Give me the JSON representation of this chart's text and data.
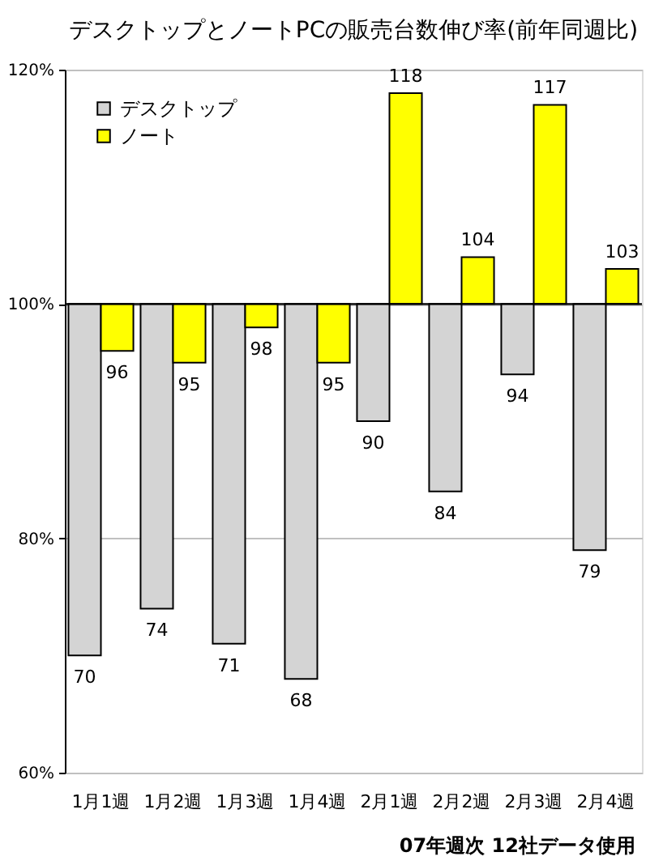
{
  "chart_data": {
    "type": "bar",
    "title": "デスクトップとノートPCの販売台数伸び率(前年同週比)",
    "categories": [
      "1月1週",
      "1月2週",
      "1月3週",
      "1月4週",
      "2月1週",
      "2月2週",
      "2月3週",
      "2月4週"
    ],
    "series": [
      {
        "name": "デスクトップ",
        "color": "#d4d4d4",
        "base": [
          100,
          100,
          100,
          100,
          100,
          100,
          100,
          100
        ],
        "values": [
          -30,
          -26,
          -29,
          -32,
          -10,
          -16,
          -6,
          -21
        ],
        "value_labels": [
          "70",
          "74",
          "71",
          "68",
          "90",
          "84",
          "94",
          "79"
        ]
      },
      {
        "name": "ノート",
        "color": "#ffff00",
        "base": [
          100,
          100,
          100,
          100,
          100,
          100,
          100,
          100
        ],
        "values": [
          -4,
          -5,
          -2,
          -5,
          18,
          4,
          17,
          3
        ],
        "value_labels": [
          "96",
          "95",
          "98",
          "95",
          "118",
          "104",
          "117",
          "103"
        ]
      }
    ],
    "ylim": [
      60,
      120
    ],
    "yticks": [
      {
        "value": 60,
        "label": "60%"
      },
      {
        "value": 80,
        "label": "80%"
      },
      {
        "value": 100,
        "label": "100%"
      },
      {
        "value": 120,
        "label": "120%"
      }
    ],
    "ref_lines": [
      {
        "axis": "y",
        "value": 100,
        "color": "#000000"
      }
    ],
    "grid": "y",
    "legend": "top left",
    "annotations": [
      "07年週次 12社データ使用"
    ]
  }
}
